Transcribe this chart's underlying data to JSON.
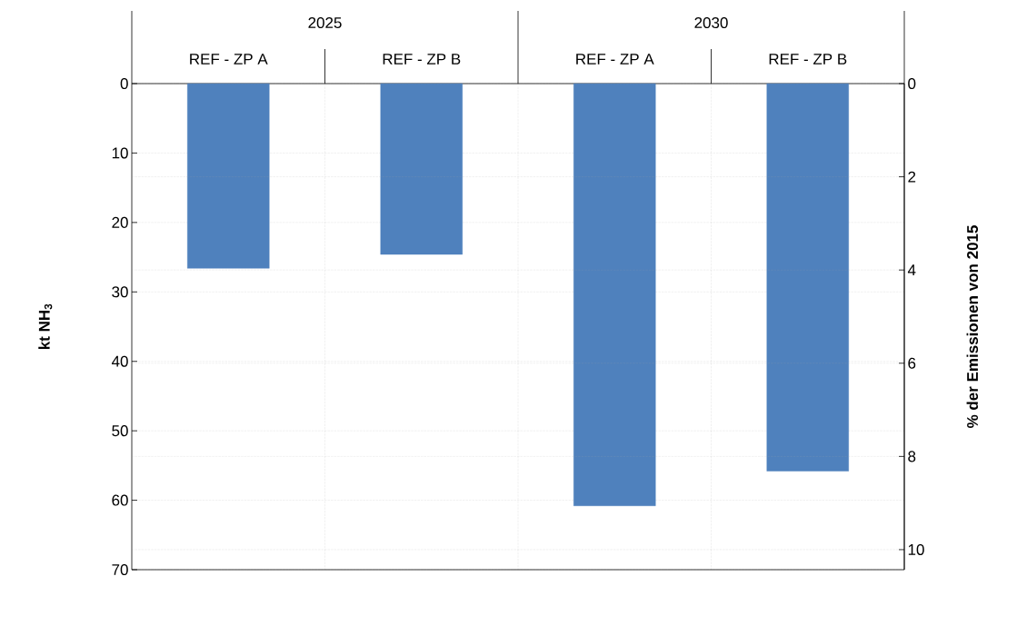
{
  "chart_data": {
    "type": "bar",
    "categories": [
      "REF -  ZP A",
      "REF - ZP B",
      "REF -  ZP A",
      "REF - ZP B"
    ],
    "annotations": [
      "2025",
      "2030"
    ],
    "values": [
      26.6,
      24.6,
      60.8,
      55.8
    ],
    "color": "#4f81bd",
    "ylabel": "kt NH$_{3}$",
    "ylim": [
      70,
      0
    ],
    "yticks": [
      0,
      10,
      20,
      30,
      40,
      50,
      60,
      70
    ],
    "y2label": "% der Emissionen von 2015",
    "y2lim": [
      10.43,
      0
    ],
    "y2ticks": [
      0,
      2,
      4,
      6,
      8,
      10
    ],
    "grid": true
  }
}
